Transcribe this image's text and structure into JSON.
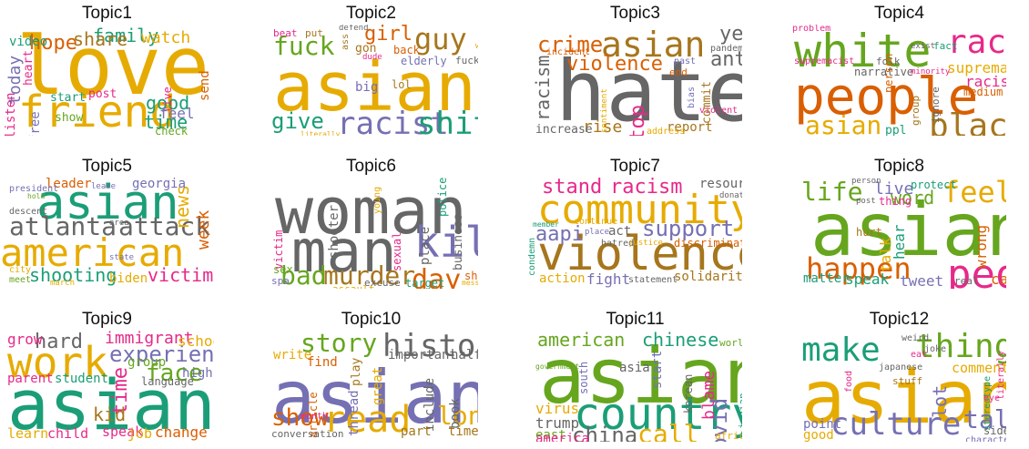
{
  "colors": {
    "green": "#1b9e77",
    "orange": "#d95f02",
    "purple": "#7570b3",
    "pink": "#e7298a",
    "lime": "#66a61e",
    "gold": "#e6ab02",
    "brown": "#a6761d",
    "gray": "#666666"
  },
  "topics": [
    {
      "title": "Topic1",
      "words": [
        {
          "text": "love",
          "color": "gold"
        },
        {
          "text": "friend",
          "color": "gold"
        },
        {
          "text": "family",
          "color": "green"
        },
        {
          "text": "share",
          "color": "brown"
        },
        {
          "text": "watch",
          "color": "gold"
        },
        {
          "text": "hope",
          "color": "orange"
        },
        {
          "text": "today",
          "color": "purple"
        },
        {
          "text": "video",
          "color": "green"
        },
        {
          "text": "heart",
          "color": "pink"
        },
        {
          "text": "good",
          "color": "green"
        },
        {
          "text": "time",
          "color": "green"
        },
        {
          "text": "send",
          "color": "orange"
        },
        {
          "text": "post",
          "color": "pink"
        },
        {
          "text": "start",
          "color": "green"
        },
        {
          "text": "live",
          "color": "pink"
        },
        {
          "text": "feel",
          "color": "purple"
        },
        {
          "text": "check",
          "color": "lime"
        },
        {
          "text": "show",
          "color": "lime"
        },
        {
          "text": "listen",
          "color": "pink"
        },
        {
          "text": "free",
          "color": "purple"
        }
      ]
    },
    {
      "title": "Topic2",
      "words": [
        {
          "text": "asian",
          "color": "gold"
        },
        {
          "text": "racist",
          "color": "purple"
        },
        {
          "text": "shit",
          "color": "green"
        },
        {
          "text": "give",
          "color": "green"
        },
        {
          "text": "fuck",
          "color": "lime"
        },
        {
          "text": "girl",
          "color": "orange"
        },
        {
          "text": "guy",
          "color": "brown"
        },
        {
          "text": "beat",
          "color": "pink"
        },
        {
          "text": "put",
          "color": "brown"
        },
        {
          "text": "defend",
          "color": "gray"
        },
        {
          "text": "ass",
          "color": "brown"
        },
        {
          "text": "gon",
          "color": "brown"
        },
        {
          "text": "dude",
          "color": "pink"
        },
        {
          "text": "back",
          "color": "orange"
        },
        {
          "text": "elderly",
          "color": "purple"
        },
        {
          "text": "wait",
          "color": "gold"
        },
        {
          "text": "fucking",
          "color": "gray"
        },
        {
          "text": "big",
          "color": "purple"
        },
        {
          "text": "lol",
          "color": "brown"
        },
        {
          "text": "literally",
          "color": "gold"
        }
      ]
    },
    {
      "title": "Topic3",
      "words": [
        {
          "text": "hate",
          "color": "gray"
        },
        {
          "text": "asian",
          "color": "brown"
        },
        {
          "text": "crime",
          "color": "orange"
        },
        {
          "text": "year",
          "color": "gray"
        },
        {
          "text": "violence",
          "color": "orange"
        },
        {
          "text": "anti",
          "color": "gray"
        },
        {
          "text": "racism",
          "color": "gray"
        },
        {
          "text": "stop",
          "color": "pink"
        },
        {
          "text": "rise",
          "color": "brown"
        },
        {
          "text": "increase",
          "color": "gray"
        },
        {
          "text": "report",
          "color": "brown"
        },
        {
          "text": "commit",
          "color": "brown"
        },
        {
          "text": "pandemic",
          "color": "gray"
        },
        {
          "text": "incident",
          "color": "orange"
        },
        {
          "text": "past",
          "color": "purple"
        },
        {
          "text": "end",
          "color": "orange"
        },
        {
          "text": "bias",
          "color": "purple"
        },
        {
          "text": "sentiment",
          "color": "gold"
        },
        {
          "text": "address",
          "color": "gold"
        },
        {
          "text": "violent",
          "color": "pink"
        }
      ]
    },
    {
      "title": "Topic4",
      "words": [
        {
          "text": "white",
          "color": "lime"
        },
        {
          "text": "people",
          "color": "orange"
        },
        {
          "text": "race",
          "color": "pink"
        },
        {
          "text": "black",
          "color": "brown"
        },
        {
          "text": "asian",
          "color": "gold"
        },
        {
          "text": "supremacy",
          "color": "gold"
        },
        {
          "text": "racist",
          "color": "pink"
        },
        {
          "text": "medium",
          "color": "orange"
        },
        {
          "text": "fact",
          "color": "green"
        },
        {
          "text": "exist",
          "color": "gray"
        },
        {
          "text": "problem",
          "color": "pink"
        },
        {
          "text": "folk",
          "color": "gray"
        },
        {
          "text": "person",
          "color": "orange"
        },
        {
          "text": "supremacist",
          "color": "pink"
        },
        {
          "text": "narrative",
          "color": "gray"
        },
        {
          "text": "minority",
          "color": "pink"
        },
        {
          "text": "ppl",
          "color": "green"
        },
        {
          "text": "group",
          "color": "brown"
        },
        {
          "text": "ignore",
          "color": "gray"
        },
        {
          "text": "color",
          "color": "gold"
        }
      ]
    },
    {
      "title": "Topic5",
      "words": [
        {
          "text": "asian",
          "color": "green"
        },
        {
          "text": "american",
          "color": "gold"
        },
        {
          "text": "atlanta",
          "color": "gray"
        },
        {
          "text": "attack",
          "color": "gray"
        },
        {
          "text": "news",
          "color": "gold"
        },
        {
          "text": "week",
          "color": "orange"
        },
        {
          "text": "shooting",
          "color": "green"
        },
        {
          "text": "victim",
          "color": "pink"
        },
        {
          "text": "biden",
          "color": "gold"
        },
        {
          "text": "leader",
          "color": "orange"
        },
        {
          "text": "georgia",
          "color": "purple"
        },
        {
          "text": "leave",
          "color": "purple"
        },
        {
          "text": "president",
          "color": "purple"
        },
        {
          "text": "hold",
          "color": "lime"
        },
        {
          "text": "descent",
          "color": "gray"
        },
        {
          "text": "area",
          "color": "gray"
        },
        {
          "text": "state",
          "color": "purple"
        },
        {
          "text": "city",
          "color": "gold"
        },
        {
          "text": "meet",
          "color": "lime"
        },
        {
          "text": "march",
          "color": "gold"
        }
      ]
    },
    {
      "title": "Topic6",
      "words": [
        {
          "text": "woman",
          "color": "gray"
        },
        {
          "text": "man",
          "color": "gray"
        },
        {
          "text": "kill",
          "color": "purple"
        },
        {
          "text": "bad",
          "color": "lime"
        },
        {
          "text": "murder",
          "color": "brown"
        },
        {
          "text": "day",
          "color": "orange"
        },
        {
          "text": "shooter",
          "color": "gray"
        },
        {
          "text": "sexual",
          "color": "pink"
        },
        {
          "text": "place",
          "color": "gray"
        },
        {
          "text": "business",
          "color": "gray"
        },
        {
          "text": "police",
          "color": "green"
        },
        {
          "text": "young",
          "color": "gold"
        },
        {
          "text": "victim",
          "color": "pink"
        },
        {
          "text": "sex",
          "color": "lime"
        },
        {
          "text": "spa",
          "color": "purple"
        },
        {
          "text": "assault",
          "color": "gold"
        },
        {
          "text": "excuse",
          "color": "gray"
        },
        {
          "text": "target",
          "color": "green"
        },
        {
          "text": "shoot",
          "color": "orange"
        },
        {
          "text": "message",
          "color": "gold"
        }
      ]
    },
    {
      "title": "Topic7",
      "words": [
        {
          "text": "violence",
          "color": "brown"
        },
        {
          "text": "community",
          "color": "gold"
        },
        {
          "text": "stand",
          "color": "pink"
        },
        {
          "text": "racism",
          "color": "pink"
        },
        {
          "text": "resource",
          "color": "gray"
        },
        {
          "text": "support",
          "color": "purple"
        },
        {
          "text": "aapi",
          "color": "purple"
        },
        {
          "text": "act",
          "color": "gray"
        },
        {
          "text": "donate",
          "color": "gray"
        },
        {
          "text": "continue",
          "color": "gold"
        },
        {
          "text": "place",
          "color": "purple"
        },
        {
          "text": "hatred",
          "color": "gray"
        },
        {
          "text": "justice",
          "color": "gold"
        },
        {
          "text": "discrimination",
          "color": "orange"
        },
        {
          "text": "member",
          "color": "green"
        },
        {
          "text": "condemn",
          "color": "green"
        },
        {
          "text": "action",
          "color": "gold"
        },
        {
          "text": "fight",
          "color": "purple"
        },
        {
          "text": "statement",
          "color": "gray"
        },
        {
          "text": "solidarity",
          "color": "brown"
        }
      ]
    },
    {
      "title": "Topic8",
      "words": [
        {
          "text": "asian",
          "color": "lime"
        },
        {
          "text": "people",
          "color": "pink"
        },
        {
          "text": "happen",
          "color": "orange"
        },
        {
          "text": "life",
          "color": "lime"
        },
        {
          "text": "feel",
          "color": "gold"
        },
        {
          "text": "live",
          "color": "purple"
        },
        {
          "text": "word",
          "color": "lime"
        },
        {
          "text": "protect",
          "color": "green"
        },
        {
          "text": "person",
          "color": "gray"
        },
        {
          "text": "thing",
          "color": "pink"
        },
        {
          "text": "post",
          "color": "gray"
        },
        {
          "text": "talk",
          "color": "gold"
        },
        {
          "text": "hear",
          "color": "green"
        },
        {
          "text": "hurt",
          "color": "brown"
        },
        {
          "text": "wrong",
          "color": "orange"
        },
        {
          "text": "matter",
          "color": "green"
        },
        {
          "text": "speak",
          "color": "green"
        },
        {
          "text": "tweet",
          "color": "purple"
        },
        {
          "text": "real",
          "color": "gray"
        },
        {
          "text": "care",
          "color": "orange"
        }
      ]
    },
    {
      "title": "Topic9",
      "words": [
        {
          "text": "asian",
          "color": "green"
        },
        {
          "text": "work",
          "color": "gold"
        },
        {
          "text": "experience",
          "color": "purple"
        },
        {
          "text": "face",
          "color": "lime"
        },
        {
          "text": "hard",
          "color": "gray"
        },
        {
          "text": "grow",
          "color": "pink"
        },
        {
          "text": "immigrant",
          "color": "pink"
        },
        {
          "text": "school",
          "color": "gold"
        },
        {
          "text": "group",
          "color": "lime"
        },
        {
          "text": "high",
          "color": "purple"
        },
        {
          "text": "language",
          "color": "gray"
        },
        {
          "text": "parent",
          "color": "pink"
        },
        {
          "text": "student",
          "color": "green"
        },
        {
          "text": "time",
          "color": "pink"
        },
        {
          "text": "kid",
          "color": "brown"
        },
        {
          "text": "learn",
          "color": "gold"
        },
        {
          "text": "child",
          "color": "pink"
        },
        {
          "text": "speak",
          "color": "pink"
        },
        {
          "text": "job",
          "color": "gold"
        },
        {
          "text": "change",
          "color": "orange"
        }
      ]
    },
    {
      "title": "Topic10",
      "words": [
        {
          "text": "asian",
          "color": "purple"
        },
        {
          "text": "read",
          "color": "gold"
        },
        {
          "text": "story",
          "color": "lime"
        },
        {
          "text": "history",
          "color": "gray"
        },
        {
          "text": "long",
          "color": "gold"
        },
        {
          "text": "show",
          "color": "orange"
        },
        {
          "text": "write",
          "color": "gold"
        },
        {
          "text": "find",
          "color": "orange"
        },
        {
          "text": "play",
          "color": "brown"
        },
        {
          "text": "important",
          "color": "gray"
        },
        {
          "text": "half",
          "color": "gray"
        },
        {
          "text": "great",
          "color": "gold"
        },
        {
          "text": "thread",
          "color": "purple"
        },
        {
          "text": "article",
          "color": "orange"
        },
        {
          "text": "month",
          "color": "pink"
        },
        {
          "text": "include",
          "color": "gray"
        },
        {
          "text": "book",
          "color": "gray"
        },
        {
          "text": "part",
          "color": "brown"
        },
        {
          "text": "time",
          "color": "brown"
        },
        {
          "text": "conversation",
          "color": "gray"
        }
      ]
    },
    {
      "title": "Topic11",
      "words": [
        {
          "text": "asian",
          "color": "lime"
        },
        {
          "text": "country",
          "color": "green"
        },
        {
          "text": "american",
          "color": "lime"
        },
        {
          "text": "chinese",
          "color": "green"
        },
        {
          "text": "world",
          "color": "lime"
        },
        {
          "text": "china",
          "color": "gray"
        },
        {
          "text": "call",
          "color": "gold"
        },
        {
          "text": "covid",
          "color": "purple"
        },
        {
          "text": "blame",
          "color": "pink"
        },
        {
          "text": "south",
          "color": "purple"
        },
        {
          "text": "asia",
          "color": "gray"
        },
        {
          "text": "start",
          "color": "purple"
        },
        {
          "text": "government",
          "color": "lime"
        },
        {
          "text": "virus",
          "color": "gold"
        },
        {
          "text": "trump",
          "color": "gray"
        },
        {
          "text": "east",
          "color": "lime"
        },
        {
          "text": "america",
          "color": "pink"
        },
        {
          "text": "korean",
          "color": "gray"
        },
        {
          "text": "indian",
          "color": "green"
        },
        {
          "text": "african",
          "color": "gold"
        }
      ]
    },
    {
      "title": "Topic12",
      "words": [
        {
          "text": "asian",
          "color": "gold"
        },
        {
          "text": "make",
          "color": "green"
        },
        {
          "text": "thing",
          "color": "lime"
        },
        {
          "text": "culture",
          "color": "purple"
        },
        {
          "text": "talk",
          "color": "purple"
        },
        {
          "text": "lot",
          "color": "purple"
        },
        {
          "text": "comment",
          "color": "gold"
        },
        {
          "text": "weird",
          "color": "gray"
        },
        {
          "text": "joke",
          "color": "gray"
        },
        {
          "text": "eat",
          "color": "pink"
        },
        {
          "text": "food",
          "color": "pink"
        },
        {
          "text": "japanese",
          "color": "gray"
        },
        {
          "text": "stuff",
          "color": "brown"
        },
        {
          "text": "stereotype",
          "color": "green"
        },
        {
          "text": "eye",
          "color": "pink"
        },
        {
          "text": "literally",
          "color": "pink"
        },
        {
          "text": "point",
          "color": "purple"
        },
        {
          "text": "good",
          "color": "gold"
        },
        {
          "text": "side",
          "color": "gray"
        },
        {
          "text": "character",
          "color": "purple"
        }
      ]
    }
  ]
}
